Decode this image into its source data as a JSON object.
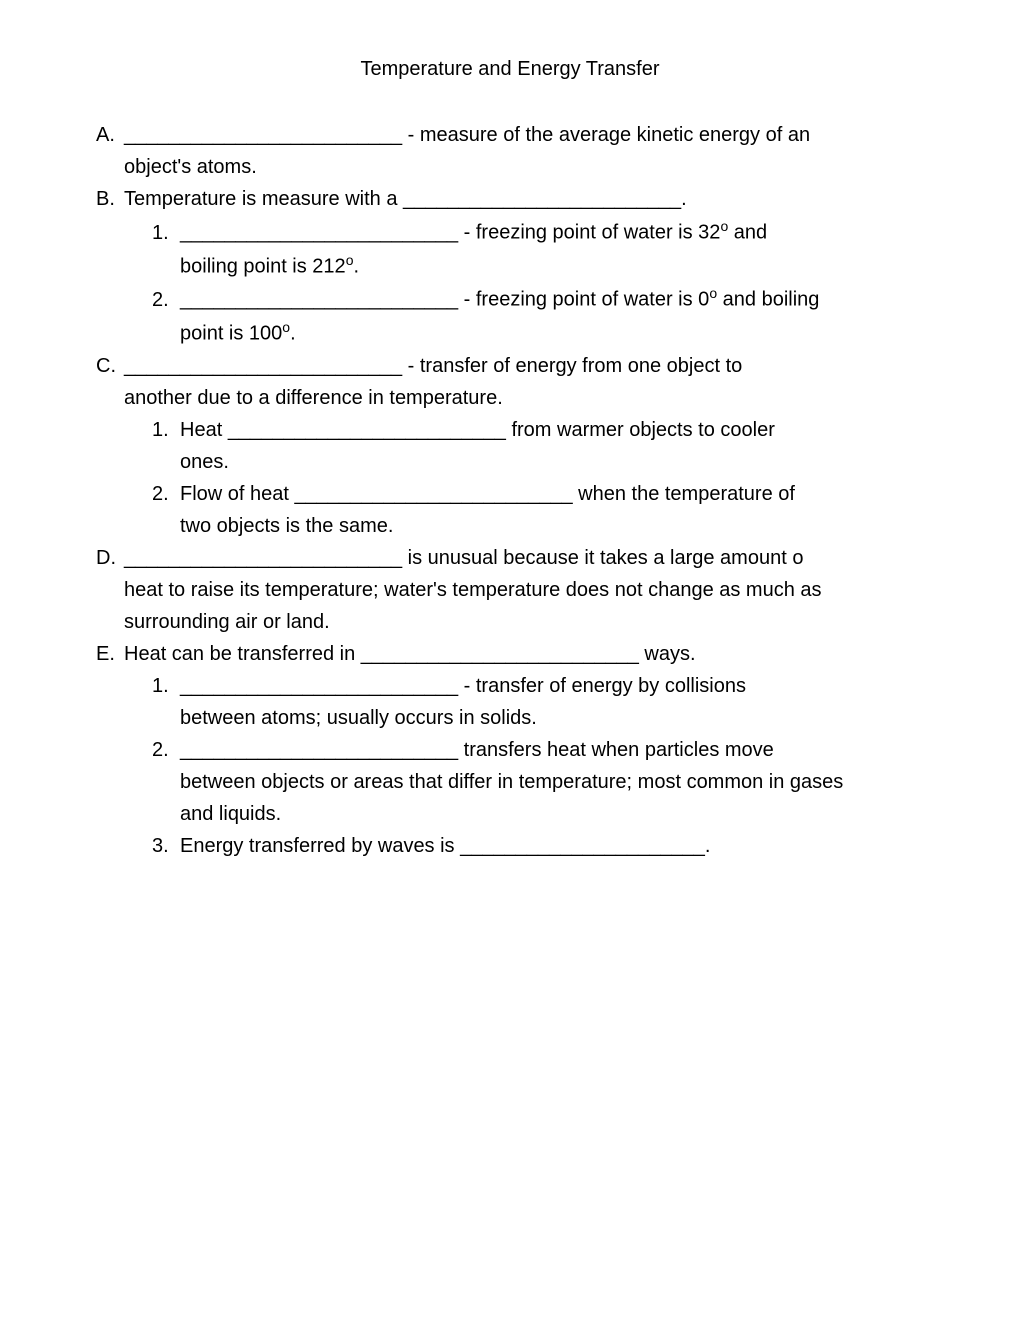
{
  "title": "Temperature and Energy Transfer",
  "blank": "_________________________",
  "blank_short": "______________________",
  "items": {
    "A": {
      "letter": "A.",
      "line1a": " - measure of the average kinetic energy of an",
      "line2": "object's atoms."
    },
    "B": {
      "letter": "B.",
      "line1a": "Temperature is measure with a ",
      "line1b": ".",
      "sub1": {
        "num": "1.",
        "line1a": " - freezing point of water is 32",
        "line1deg": "o",
        "line1b": " and",
        "line2a": "boiling point is 212",
        "line2deg": "o",
        "line2b": "."
      },
      "sub2": {
        "num": "2.",
        "line1a": " - freezing point of water is 0",
        "line1deg": "o",
        "line1b": " and boiling",
        "line2a": "point is 100",
        "line2deg": "o",
        "line2b": "."
      }
    },
    "C": {
      "letter": "C.",
      "line1a": " - transfer of energy from one object to",
      "line2": "another due to a difference in temperature.",
      "sub1": {
        "num": "1.",
        "line1a": "Heat ",
        "line1b": " from warmer objects to cooler",
        "line2": "ones."
      },
      "sub2": {
        "num": "2.",
        "line1a": "Flow of heat ",
        "line1b": " when the temperature of",
        "line2": "two objects is the same."
      }
    },
    "D": {
      "letter": "D.",
      "line1a": " is unusual because it takes a large amount o",
      "line2": "heat to raise its temperature; water's temperature does not change as much as",
      "line3": "surrounding air or land."
    },
    "E": {
      "letter": "E.",
      "line1a": "Heat can be transferred in ",
      "line1b": " ways.",
      "sub1": {
        "num": "1.",
        "line1a": " - transfer of energy by collisions",
        "line2": "between atoms; usually occurs in solids."
      },
      "sub2": {
        "num": "2.",
        "line1a": " transfers heat when particles move",
        "line2": "between objects or areas that differ in temperature; most common in gases",
        "line3": "and liquids."
      },
      "sub3": {
        "num": "3.",
        "line1a": "Energy transferred by waves is ",
        "line1b": "."
      }
    }
  }
}
